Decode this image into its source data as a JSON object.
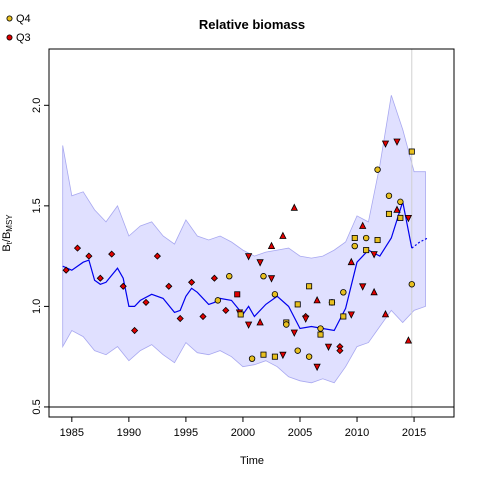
{
  "chart_data": {
    "type": "line",
    "title": "Relative biomass",
    "xlabel": "Time",
    "ylabel": "B_t/B_MSY",
    "xlim": [
      1983,
      2018.5
    ],
    "ylim": [
      0.45,
      2.28
    ],
    "xticks": [
      1985,
      1990,
      1995,
      2000,
      2005,
      2010,
      2015
    ],
    "yticks": [
      0.5,
      1.0,
      1.5,
      2.0
    ],
    "hline": 0.5,
    "vline": 2014.8,
    "legend": {
      "position": "top-left",
      "entries": [
        "Q4",
        "Q3"
      ]
    },
    "colors": {
      "band": "#e0e0ff",
      "band_edge": "#a8a8f0",
      "line": "#0000ee",
      "q4": "#e8c020",
      "q3": "#e00000",
      "vline": "#d0d0d0"
    },
    "band": {
      "x": [
        1984.2,
        1985,
        1986,
        1987,
        1988,
        1989,
        1990,
        1991,
        1992,
        1993,
        1994,
        1995,
        1996,
        1997,
        1998,
        1999,
        2000,
        2001,
        2002,
        2003,
        2004,
        2005,
        2006,
        2007,
        2008,
        2009,
        2010,
        2011,
        2012,
        2013,
        2014,
        2015,
        2016
      ],
      "upper": [
        1.8,
        1.55,
        1.57,
        1.48,
        1.42,
        1.5,
        1.35,
        1.4,
        1.42,
        1.35,
        1.31,
        1.43,
        1.35,
        1.33,
        1.35,
        1.32,
        1.28,
        1.25,
        1.27,
        1.28,
        1.29,
        1.25,
        1.24,
        1.25,
        1.28,
        1.32,
        1.45,
        1.42,
        1.7,
        2.05,
        1.88,
        1.67,
        1.67
      ],
      "lower": [
        0.8,
        0.88,
        0.85,
        0.78,
        0.76,
        0.8,
        0.73,
        0.78,
        0.81,
        0.76,
        0.72,
        0.82,
        0.77,
        0.76,
        0.78,
        0.75,
        0.7,
        0.71,
        0.73,
        0.7,
        0.65,
        0.63,
        0.62,
        0.64,
        0.62,
        0.7,
        0.8,
        0.82,
        0.9,
        0.98,
        0.92,
        0.98,
        1.0
      ]
    },
    "line": {
      "x": [
        1984.2,
        1985,
        1986,
        1986.5,
        1987,
        1987.5,
        1988,
        1989,
        1989.5,
        1990,
        1990.5,
        1991,
        1992,
        1993,
        1994,
        1994.5,
        1995,
        1995.5,
        1996,
        1997,
        1997.5,
        1998,
        1999,
        2000,
        2000.5,
        2001,
        2002,
        2003,
        2004,
        2005,
        2006,
        2007,
        2008,
        2009,
        2010,
        2011,
        2012,
        2013,
        2014,
        2014.8
      ],
      "y": [
        1.2,
        1.18,
        1.22,
        1.23,
        1.13,
        1.11,
        1.12,
        1.19,
        1.14,
        1.0,
        1.0,
        1.03,
        1.06,
        1.04,
        0.97,
        0.98,
        1.05,
        1.09,
        1.07,
        1.01,
        1.02,
        1.04,
        1.03,
        0.96,
        1.0,
        0.95,
        1.01,
        1.05,
        1.0,
        0.89,
        0.9,
        0.89,
        0.88,
        0.99,
        1.22,
        1.28,
        1.25,
        1.34,
        1.52,
        1.29
      ]
    },
    "projection": {
      "x": [
        2014.8,
        2015.5,
        2016.2
      ],
      "y": [
        1.29,
        1.32,
        1.34
      ]
    },
    "series": [
      {
        "name": "Q3",
        "points": [
          {
            "x": 1984.5,
            "y": 1.18,
            "shape": "diamond"
          },
          {
            "x": 1985.5,
            "y": 1.29,
            "shape": "diamond"
          },
          {
            "x": 1986.5,
            "y": 1.25,
            "shape": "diamond"
          },
          {
            "x": 1987.5,
            "y": 1.14,
            "shape": "diamond"
          },
          {
            "x": 1988.5,
            "y": 1.26,
            "shape": "diamond"
          },
          {
            "x": 1989.5,
            "y": 1.1,
            "shape": "diamond"
          },
          {
            "x": 1990.5,
            "y": 0.88,
            "shape": "diamond"
          },
          {
            "x": 1991.5,
            "y": 1.02,
            "shape": "diamond"
          },
          {
            "x": 1992.5,
            "y": 1.25,
            "shape": "diamond"
          },
          {
            "x": 1993.5,
            "y": 1.1,
            "shape": "diamond"
          },
          {
            "x": 1994.5,
            "y": 0.94,
            "shape": "diamond"
          },
          {
            "x": 1995.5,
            "y": 1.12,
            "shape": "diamond"
          },
          {
            "x": 1996.5,
            "y": 0.95,
            "shape": "diamond"
          },
          {
            "x": 1997.5,
            "y": 1.14,
            "shape": "diamond"
          },
          {
            "x": 1998.5,
            "y": 0.98,
            "shape": "diamond"
          },
          {
            "x": 1999.5,
            "y": 1.06,
            "shape": "square"
          },
          {
            "x": 1999.7,
            "y": 0.97,
            "shape": "triangle-down"
          },
          {
            "x": 2000.5,
            "y": 1.25,
            "shape": "triangle-down"
          },
          {
            "x": 2000.5,
            "y": 0.91,
            "shape": "triangle-down"
          },
          {
            "x": 2001.5,
            "y": 1.22,
            "shape": "triangle-down"
          },
          {
            "x": 2001.5,
            "y": 0.92,
            "shape": "triangle-up"
          },
          {
            "x": 2002.5,
            "y": 1.3,
            "shape": "triangle-up"
          },
          {
            "x": 2002.5,
            "y": 1.14,
            "shape": "triangle-down"
          },
          {
            "x": 2003.5,
            "y": 1.35,
            "shape": "triangle-up"
          },
          {
            "x": 2003.5,
            "y": 0.76,
            "shape": "triangle-down"
          },
          {
            "x": 2004.5,
            "y": 1.49,
            "shape": "triangle-up"
          },
          {
            "x": 2004.5,
            "y": 0.87,
            "shape": "triangle-down"
          },
          {
            "x": 2005.5,
            "y": 0.95,
            "shape": "diamond"
          },
          {
            "x": 2005.5,
            "y": 0.94,
            "shape": "triangle-down"
          },
          {
            "x": 2006.5,
            "y": 1.03,
            "shape": "triangle-up"
          },
          {
            "x": 2006.5,
            "y": 0.7,
            "shape": "triangle-down"
          },
          {
            "x": 2007.5,
            "y": 0.8,
            "shape": "triangle-down"
          },
          {
            "x": 2008.5,
            "y": 0.8,
            "shape": "diamond"
          },
          {
            "x": 2008.5,
            "y": 0.78,
            "shape": "diamond"
          },
          {
            "x": 2009.5,
            "y": 1.22,
            "shape": "triangle-up"
          },
          {
            "x": 2009.5,
            "y": 0.96,
            "shape": "triangle-down"
          },
          {
            "x": 2010.5,
            "y": 1.4,
            "shape": "triangle-up"
          },
          {
            "x": 2010.5,
            "y": 1.1,
            "shape": "triangle-down"
          },
          {
            "x": 2011.5,
            "y": 1.26,
            "shape": "triangle-down"
          },
          {
            "x": 2011.5,
            "y": 1.07,
            "shape": "triangle-up"
          },
          {
            "x": 2012.5,
            "y": 1.81,
            "shape": "triangle-down"
          },
          {
            "x": 2012.5,
            "y": 0.96,
            "shape": "triangle-up"
          },
          {
            "x": 2013.5,
            "y": 1.82,
            "shape": "triangle-down"
          },
          {
            "x": 2013.5,
            "y": 1.48,
            "shape": "triangle-up"
          },
          {
            "x": 2014.5,
            "y": 1.44,
            "shape": "triangle-down"
          },
          {
            "x": 2014.5,
            "y": 0.83,
            "shape": "triangle-up"
          }
        ]
      },
      {
        "name": "Q4",
        "points": [
          {
            "x": 1997.8,
            "y": 1.03,
            "shape": "circle"
          },
          {
            "x": 1998.8,
            "y": 1.15,
            "shape": "circle"
          },
          {
            "x": 1999.8,
            "y": 0.96,
            "shape": "square"
          },
          {
            "x": 2000.8,
            "y": 0.74,
            "shape": "circle"
          },
          {
            "x": 2001.8,
            "y": 1.15,
            "shape": "circle"
          },
          {
            "x": 2001.8,
            "y": 0.76,
            "shape": "square"
          },
          {
            "x": 2002.8,
            "y": 1.06,
            "shape": "circle"
          },
          {
            "x": 2002.8,
            "y": 0.75,
            "shape": "square"
          },
          {
            "x": 2003.8,
            "y": 0.92,
            "shape": "square"
          },
          {
            "x": 2003.8,
            "y": 0.91,
            "shape": "circle"
          },
          {
            "x": 2004.8,
            "y": 1.01,
            "shape": "square"
          },
          {
            "x": 2004.8,
            "y": 0.78,
            "shape": "circle"
          },
          {
            "x": 2005.8,
            "y": 1.1,
            "shape": "square"
          },
          {
            "x": 2005.8,
            "y": 0.75,
            "shape": "circle"
          },
          {
            "x": 2006.8,
            "y": 0.89,
            "shape": "circle"
          },
          {
            "x": 2006.8,
            "y": 0.86,
            "shape": "square"
          },
          {
            "x": 2007.8,
            "y": 1.02,
            "shape": "circle"
          },
          {
            "x": 2007.8,
            "y": 1.02,
            "shape": "square"
          },
          {
            "x": 2008.8,
            "y": 1.07,
            "shape": "circle"
          },
          {
            "x": 2008.8,
            "y": 0.95,
            "shape": "square"
          },
          {
            "x": 2009.8,
            "y": 1.34,
            "shape": "square"
          },
          {
            "x": 2009.8,
            "y": 1.3,
            "shape": "circle"
          },
          {
            "x": 2010.8,
            "y": 1.34,
            "shape": "circle"
          },
          {
            "x": 2010.8,
            "y": 1.28,
            "shape": "square"
          },
          {
            "x": 2011.8,
            "y": 1.68,
            "shape": "circle"
          },
          {
            "x": 2011.8,
            "y": 1.33,
            "shape": "square"
          },
          {
            "x": 2012.8,
            "y": 1.55,
            "shape": "circle"
          },
          {
            "x": 2012.8,
            "y": 1.46,
            "shape": "square"
          },
          {
            "x": 2013.8,
            "y": 1.52,
            "shape": "circle"
          },
          {
            "x": 2013.8,
            "y": 1.44,
            "shape": "square"
          },
          {
            "x": 2014.8,
            "y": 1.77,
            "shape": "square"
          },
          {
            "x": 2014.8,
            "y": 1.11,
            "shape": "circle"
          }
        ]
      }
    ]
  }
}
